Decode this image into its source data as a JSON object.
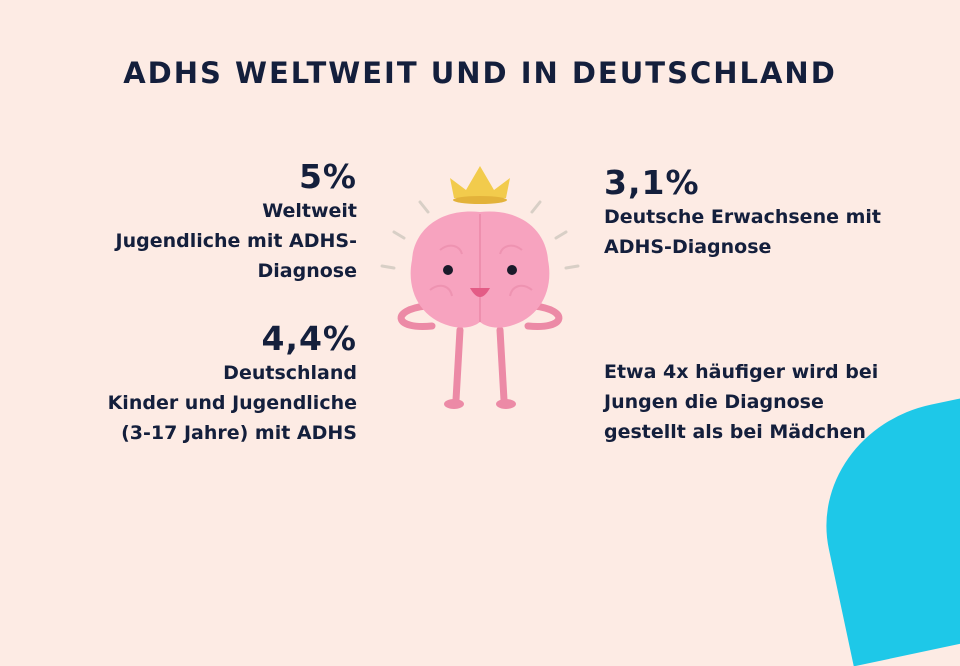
{
  "title": "ADHS WELTWEIT UND IN DEUTSCHLAND",
  "stats": {
    "worldwide": {
      "value": "5%",
      "lines": [
        "Weltweit",
        "Jugendliche mit ADHS-",
        "Diagnose"
      ]
    },
    "germany_children": {
      "value": "4,4%",
      "lines": [
        "Deutschland",
        "Kinder und Jugendliche",
        "(3-17 Jahre) mit ADHS"
      ]
    },
    "germany_adults": {
      "value": "3,1%",
      "lines": [
        "Deutsche Erwachsene mit",
        "ADHS-Diagnose"
      ]
    },
    "gender": {
      "lines": [
        "Etwa 4x häufiger wird bei",
        "Jungen die Diagnose",
        "gestellt als bei Mädchen"
      ]
    }
  },
  "colors": {
    "background": "#fdebe4",
    "text": "#141f3c",
    "accent_blob": "#1ec8e8",
    "brain": "#f7a3bf",
    "crown": "#f2cb4c"
  },
  "illustration": "brain-with-crown"
}
